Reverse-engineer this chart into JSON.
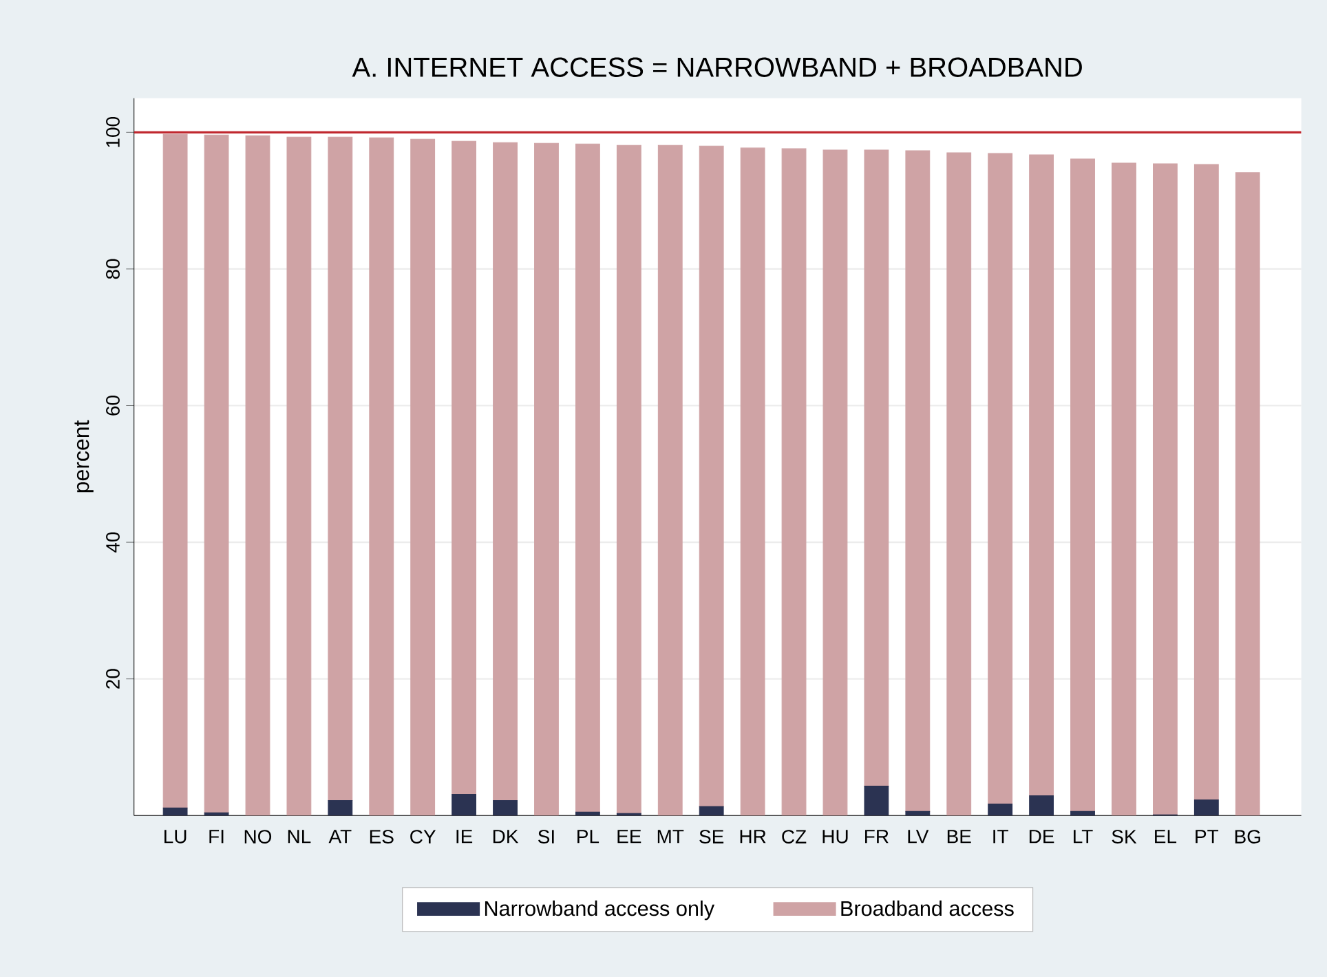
{
  "chart_data": {
    "type": "bar",
    "stacked": true,
    "title": "A. INTERNET ACCESS = NARROWBAND + BROADBAND",
    "ylabel": "percent",
    "categories": [
      "LU",
      "FI",
      "NO",
      "NL",
      "AT",
      "ES",
      "CY",
      "IE",
      "DK",
      "SI",
      "PL",
      "EE",
      "MT",
      "SE",
      "HR",
      "CZ",
      "HU",
      "FR",
      "LV",
      "BE",
      "IT",
      "DE",
      "LT",
      "SK",
      "EL",
      "PT",
      "BG"
    ],
    "series": [
      {
        "name": "Narrowband access only",
        "color": "#2b3352",
        "values": [
          1.1,
          0.4,
          0,
          0,
          2.2,
          0,
          0,
          3.1,
          2.2,
          0,
          0.5,
          0.3,
          0,
          1.3,
          0,
          0,
          0,
          4.3,
          0.6,
          0,
          1.7,
          2.9,
          0.6,
          0,
          0.1,
          2.3,
          0
        ]
      },
      {
        "name": "Broadband access",
        "color": "#cfa3a5",
        "values": [
          98.6,
          99.2,
          99.5,
          99.3,
          97.1,
          99.2,
          99.0,
          95.6,
          96.3,
          98.4,
          97.8,
          97.8,
          98.1,
          96.7,
          97.7,
          97.6,
          97.4,
          93.1,
          96.7,
          97.0,
          95.2,
          93.8,
          95.5,
          95.5,
          95.3,
          93.0,
          94.1
        ]
      }
    ],
    "ylim": [
      0,
      105
    ],
    "yticks": [
      20,
      40,
      60,
      80,
      100
    ],
    "grid": "y",
    "legend": "bottom",
    "ref_lines": [
      {
        "axis": "y",
        "value": 100,
        "color": "#c0282f"
      }
    ]
  }
}
